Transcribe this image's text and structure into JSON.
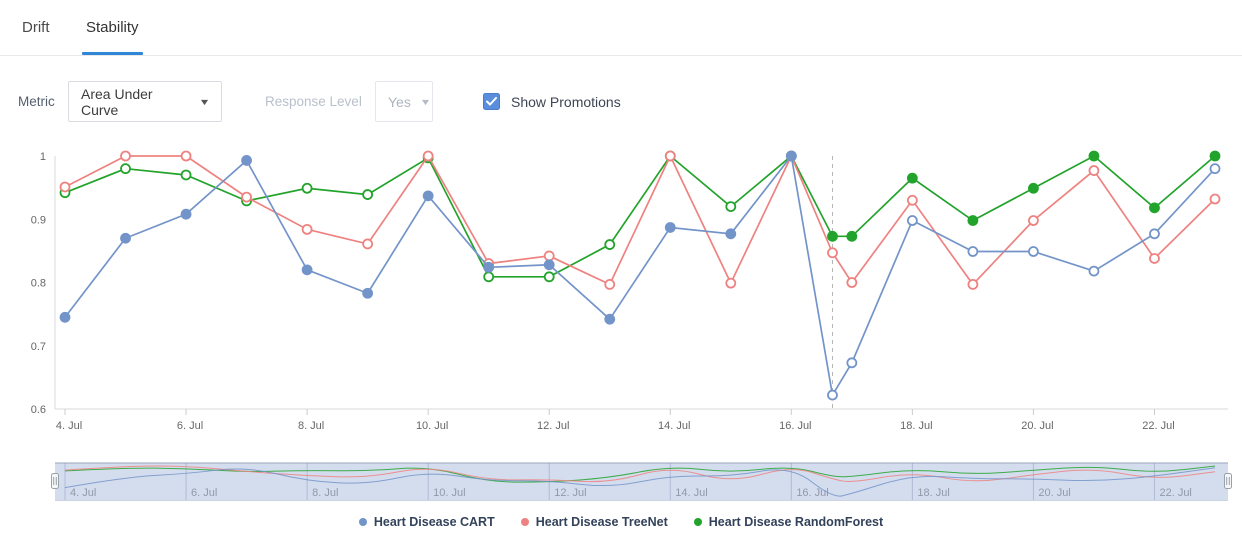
{
  "tabs": [
    {
      "label": "Drift",
      "active": false
    },
    {
      "label": "Stability",
      "active": true
    }
  ],
  "controls": {
    "metric_label": "Metric",
    "metric_value": "Area Under Curve",
    "response_level_label": "Response Level",
    "response_level_value": "Yes",
    "response_level_disabled": true,
    "show_promotions_label": "Show Promotions",
    "show_promotions_checked": true
  },
  "ui_colors": {
    "tab_underline": "#2f86d6",
    "checkbox_fill": "#5a8edd",
    "axis_line": "#d8d8d8",
    "axis_text": "#666666",
    "promotion_line": "#b5b5b5",
    "navigator_mask": "rgba(102,133,194,0.28)",
    "navigator_outline": "#9aa6bd",
    "navigator_label": "#9099a8"
  },
  "chart_data": {
    "type": "line",
    "title": "",
    "xlabel": "",
    "ylabel": "",
    "grid": false,
    "legend_position": "bottom",
    "y_axis": {
      "ylim": [
        0.6,
        1.0
      ],
      "tick_labels": [
        "1",
        "0.9",
        "0.8",
        "0.7",
        "0.6"
      ],
      "tick_values": [
        1,
        0.9,
        0.8,
        0.7,
        0.6
      ]
    },
    "x_axis": {
      "tick_labels": [
        "4. Jul",
        "6. Jul",
        "8. Jul",
        "10. Jul",
        "12. Jul",
        "14. Jul",
        "16. Jul",
        "18. Jul",
        "20. Jul",
        "22. Jul"
      ],
      "tick_days": [
        0,
        2,
        4,
        6,
        8,
        10,
        12,
        14,
        16,
        18
      ]
    },
    "point_dates": [
      "4 Jul",
      "5 Jul",
      "6 Jul",
      "7 Jul",
      "8 Jul",
      "9 Jul",
      "10 Jul",
      "11 Jul",
      "12 Jul",
      "13 Jul",
      "14 Jul",
      "15 Jul",
      "16 Jul",
      "16 Jul (promotion)",
      "17 Jul",
      "18 Jul",
      "19 Jul",
      "20 Jul",
      "21 Jul",
      "22 Jul",
      "23 Jul"
    ],
    "point_days": [
      0,
      1,
      2,
      3,
      4,
      5,
      6,
      7,
      8,
      9,
      10,
      11,
      12,
      12.68,
      13,
      14,
      15,
      16,
      17,
      18,
      19
    ],
    "promotion": {
      "day": 12.68,
      "marker": "dashed-vertical-line"
    },
    "series": [
      {
        "name": "Heart Disease CART",
        "color": "#7394c9",
        "marker_filled_before_promotion": true,
        "marker_filled_after_promotion": false,
        "values": [
          0.745,
          0.87,
          0.908,
          0.993,
          0.82,
          0.783,
          0.937,
          0.824,
          0.828,
          0.742,
          0.887,
          0.877,
          1,
          0.622,
          0.673,
          0.898,
          0.849,
          0.849,
          0.818,
          0.877,
          0.98
        ]
      },
      {
        "name": "Heart Disease TreeNet",
        "color": "#ee8280",
        "marker_filled_before_promotion": false,
        "marker_filled_after_promotion": false,
        "values": [
          0.951,
          1,
          1,
          0.935,
          0.884,
          0.861,
          1,
          0.83,
          0.842,
          0.797,
          1,
          0.799,
          1,
          0.847,
          0.8,
          0.93,
          0.797,
          0.898,
          0.977,
          0.838,
          0.932
        ]
      },
      {
        "name": "Heart Disease RandomForest",
        "color": "#22a32b",
        "marker_filled_before_promotion": false,
        "marker_filled_after_promotion": true,
        "values": [
          0.942,
          0.98,
          0.97,
          0.929,
          0.949,
          0.939,
          0.997,
          0.809,
          0.809,
          0.86,
          1,
          0.92,
          1,
          0.873,
          0.873,
          0.965,
          0.898,
          0.949,
          1,
          0.918,
          1
        ]
      }
    ],
    "navigator": {
      "visible": true,
      "range_start_label": "4. Jul",
      "range_end_label": "22. Jul"
    }
  }
}
